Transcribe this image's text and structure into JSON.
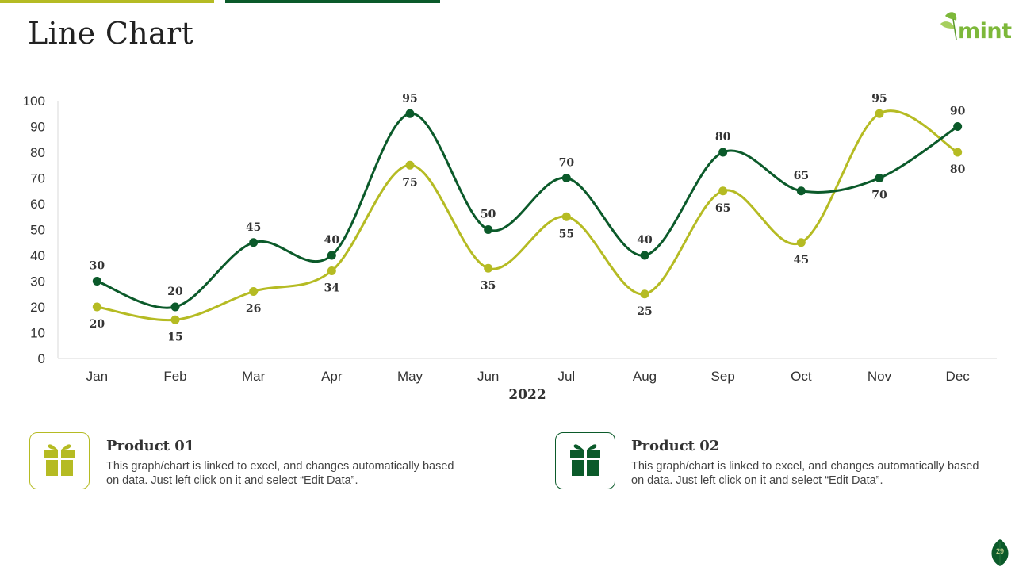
{
  "slide": {
    "title": "Line Chart",
    "logo_text": "mint",
    "page_number": "29"
  },
  "colors": {
    "accent_light": "#b5bb23",
    "accent_dark": "#0b5a2a"
  },
  "legend_cards": [
    {
      "title": "Product 01",
      "description": "This graph/chart is linked to excel, and changes automatically based on data. Just left click on it and select “Edit Data”.",
      "icon": "gift-icon"
    },
    {
      "title": "Product 02",
      "description": "This graph/chart is linked to excel, and changes automatically based on data. Just left click on it and select “Edit Data”.",
      "icon": "gift-icon"
    }
  ],
  "chart_data": {
    "type": "line",
    "title": "",
    "xlabel": "2022",
    "ylabel": "",
    "ylim": [
      0,
      100
    ],
    "yticks": [
      0,
      10,
      20,
      30,
      40,
      50,
      60,
      70,
      80,
      90,
      100
    ],
    "categories": [
      "Jan",
      "Feb",
      "Mar",
      "Apr",
      "May",
      "Jun",
      "Jul",
      "Aug",
      "Sep",
      "Oct",
      "Nov",
      "Dec"
    ],
    "series": [
      {
        "name": "Product 02",
        "color": "#0b5a2a",
        "values": [
          30,
          20,
          45,
          40,
          95,
          50,
          70,
          40,
          80,
          65,
          70,
          90
        ]
      },
      {
        "name": "Product 01",
        "color": "#b5bb23",
        "values": [
          20,
          15,
          26,
          34,
          75,
          35,
          55,
          25,
          65,
          45,
          95,
          80
        ]
      }
    ],
    "smooth": true,
    "grid": false
  }
}
